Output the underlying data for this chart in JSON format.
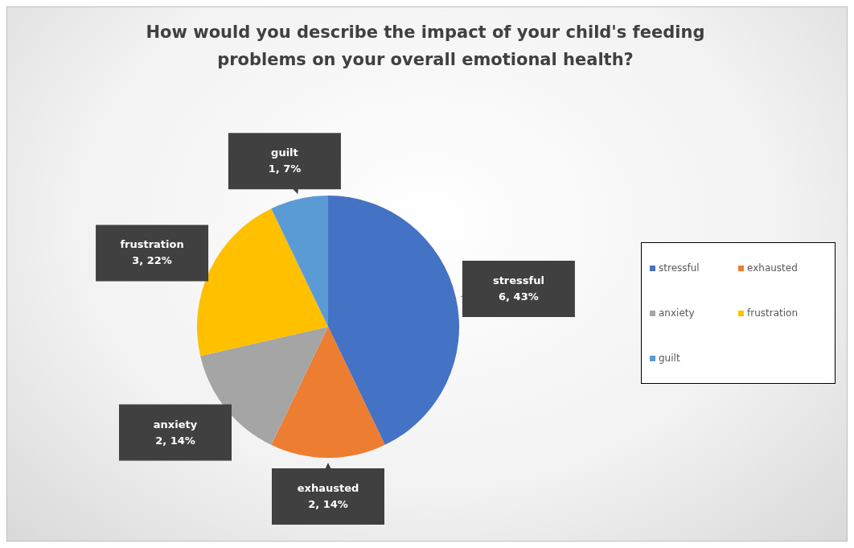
{
  "chart_data": {
    "type": "pie",
    "title": "How would you describe the impact of your child's feeding problems on your overall emotional health?",
    "categories": [
      "stressful",
      "exhausted",
      "anxiety",
      "frustration",
      "guilt"
    ],
    "values": [
      6,
      2,
      2,
      3,
      1
    ],
    "value_labels": [
      "6, 43%",
      "2, 14%",
      "2, 14%",
      "3, 22%",
      "1, 7%"
    ],
    "colors": [
      "#4472c4",
      "#ed7d31",
      "#a5a5a5",
      "#ffc000",
      "#5b9bd5"
    ],
    "legend": "right"
  }
}
